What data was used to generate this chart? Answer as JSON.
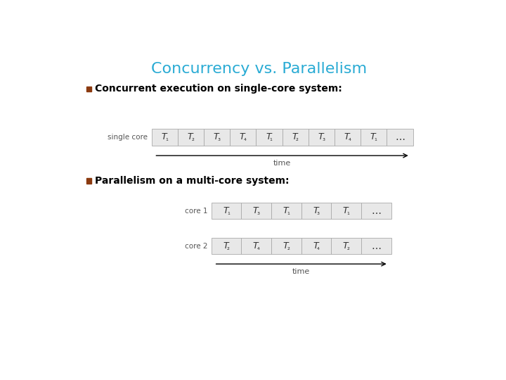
{
  "title": "Concurrency vs. Parallelism",
  "title_color": "#29ABD4",
  "title_fontsize": 16,
  "bullet_color": "#8B3A10",
  "bullet1_text": "Concurrent execution on single-core system:",
  "bullet2_text": "Parallelism on a multi-core system:",
  "bullet_fontsize": 10,
  "background_color": "#ffffff",
  "box_fill": "#e8e8e8",
  "box_edge": "#aaaaaa",
  "single_core_label": "single core",
  "single_core_seq": [
    "T₁",
    "T₂",
    "T₃",
    "T₄",
    "T₁",
    "T₂",
    "T₃",
    "T₄",
    "T₁",
    "…"
  ],
  "core1_label": "core 1",
  "core1_seq": [
    "T₁",
    "T₃",
    "T₁",
    "T₃",
    "T₁",
    "…"
  ],
  "core2_label": "core 2",
  "core2_seq": [
    "T₂",
    "T₄",
    "T₂",
    "T₄",
    "T₂",
    "…"
  ],
  "time_label": "time",
  "text_color": "#555555"
}
